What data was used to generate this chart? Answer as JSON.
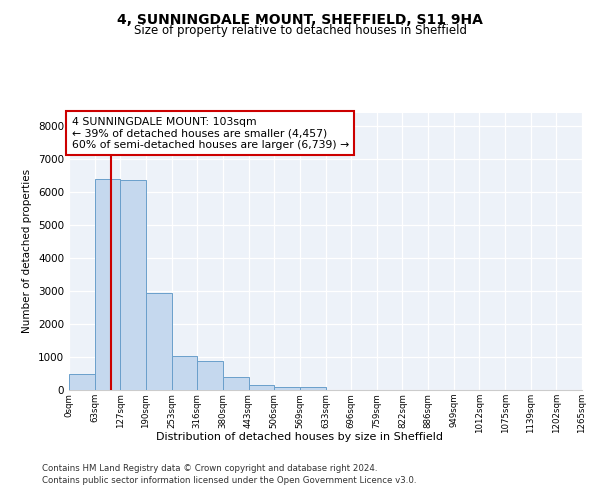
{
  "title1": "4, SUNNINGDALE MOUNT, SHEFFIELD, S11 9HA",
  "title2": "Size of property relative to detached houses in Sheffield",
  "xlabel": "Distribution of detached houses by size in Sheffield",
  "ylabel": "Number of detached properties",
  "bin_labels": [
    "0sqm",
    "63sqm",
    "127sqm",
    "190sqm",
    "253sqm",
    "316sqm",
    "380sqm",
    "443sqm",
    "506sqm",
    "569sqm",
    "633sqm",
    "696sqm",
    "759sqm",
    "822sqm",
    "886sqm",
    "949sqm",
    "1012sqm",
    "1075sqm",
    "1139sqm",
    "1202sqm",
    "1265sqm"
  ],
  "bar_heights": [
    490,
    6380,
    6350,
    2950,
    1020,
    890,
    380,
    150,
    100,
    95,
    0,
    0,
    0,
    0,
    0,
    0,
    0,
    0,
    0,
    0
  ],
  "bar_color": "#c5d8ee",
  "bar_edge_color": "#6a9fcb",
  "bar_edge_width": 0.7,
  "red_line_color": "#cc0000",
  "annotation_text": "4 SUNNINGDALE MOUNT: 103sqm\n← 39% of detached houses are smaller (4,457)\n60% of semi-detached houses are larger (6,739) →",
  "annotation_box_color": "#cc0000",
  "ylim": [
    0,
    8400
  ],
  "yticks": [
    0,
    1000,
    2000,
    3000,
    4000,
    5000,
    6000,
    7000,
    8000
  ],
  "footer1": "Contains HM Land Registry data © Crown copyright and database right 2024.",
  "footer2": "Contains public sector information licensed under the Open Government Licence v3.0.",
  "bg_color": "#edf2f9",
  "grid_color": "#ffffff"
}
